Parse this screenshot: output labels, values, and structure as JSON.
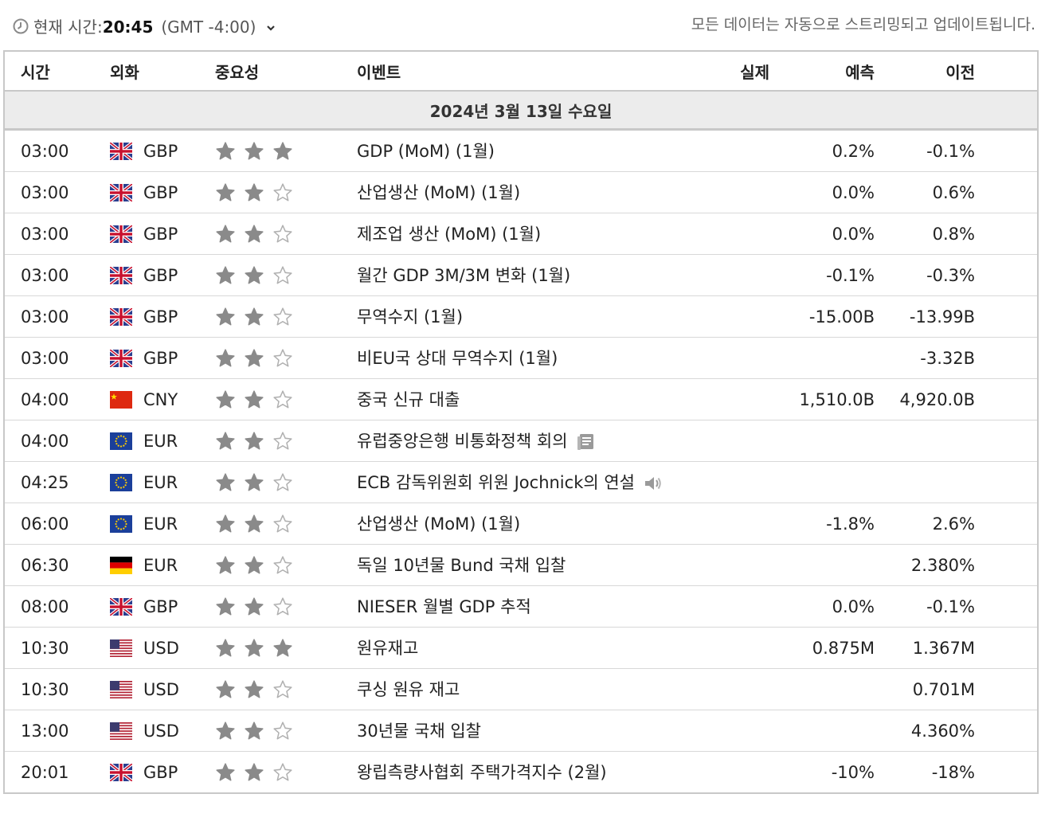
{
  "header": {
    "current_time_label": "현재 시간:",
    "current_time": "20:45",
    "timezone": "(GMT -4:00)",
    "stream_notice": "모든 데이터는 자동으로 스트리밍되고 업데이트됩니다."
  },
  "columns": {
    "time": "시간",
    "currency": "외화",
    "importance": "중요성",
    "event": "이벤트",
    "actual": "실제",
    "forecast": "예측",
    "previous": "이전"
  },
  "date_header": "2024년 3월 13일 수요일",
  "rows": [
    {
      "time": "03:00",
      "flag": "uk",
      "currency": "GBP",
      "stars": 3,
      "event": "GDP (MoM) (1월)",
      "actual": "",
      "forecast": "0.2%",
      "previous": "-0.1%",
      "icon": ""
    },
    {
      "time": "03:00",
      "flag": "uk",
      "currency": "GBP",
      "stars": 2,
      "event": "산업생산 (MoM) (1월)",
      "actual": "",
      "forecast": "0.0%",
      "previous": "0.6%",
      "icon": ""
    },
    {
      "time": "03:00",
      "flag": "uk",
      "currency": "GBP",
      "stars": 2,
      "event": "제조업 생산 (MoM) (1월)",
      "actual": "",
      "forecast": "0.0%",
      "previous": "0.8%",
      "icon": ""
    },
    {
      "time": "03:00",
      "flag": "uk",
      "currency": "GBP",
      "stars": 2,
      "event": "월간 GDP 3M/3M 변화 (1월)",
      "actual": "",
      "forecast": "-0.1%",
      "previous": "-0.3%",
      "icon": ""
    },
    {
      "time": "03:00",
      "flag": "uk",
      "currency": "GBP",
      "stars": 2,
      "event": "무역수지 (1월)",
      "actual": "",
      "forecast": "-15.00B",
      "previous": "-13.99B",
      "icon": ""
    },
    {
      "time": "03:00",
      "flag": "uk",
      "currency": "GBP",
      "stars": 2,
      "event": "비EU국 상대 무역수지 (1월)",
      "actual": "",
      "forecast": "",
      "previous": "-3.32B",
      "icon": ""
    },
    {
      "time": "04:00",
      "flag": "cn",
      "currency": "CNY",
      "stars": 2,
      "event": "중국 신규 대출",
      "actual": "",
      "forecast": "1,510.0B",
      "previous": "4,920.0B",
      "icon": ""
    },
    {
      "time": "04:00",
      "flag": "eu",
      "currency": "EUR",
      "stars": 2,
      "event": "유럽중앙은행 비통화정책 회의",
      "actual": "",
      "forecast": "",
      "previous": "",
      "icon": "document-icon"
    },
    {
      "time": "04:25",
      "flag": "eu",
      "currency": "EUR",
      "stars": 2,
      "event": "ECB 감독위원회 위원 Jochnick의 연설",
      "actual": "",
      "forecast": "",
      "previous": "",
      "icon": "speaker-icon"
    },
    {
      "time": "06:00",
      "flag": "eu",
      "currency": "EUR",
      "stars": 2,
      "event": "산업생산 (MoM) (1월)",
      "actual": "",
      "forecast": "-1.8%",
      "previous": "2.6%",
      "icon": ""
    },
    {
      "time": "06:30",
      "flag": "de",
      "currency": "EUR",
      "stars": 2,
      "event": "독일 10년물 Bund 국채 입찰",
      "actual": "",
      "forecast": "",
      "previous": "2.380%",
      "icon": ""
    },
    {
      "time": "08:00",
      "flag": "uk",
      "currency": "GBP",
      "stars": 2,
      "event": "NIESER 월별 GDP 추적",
      "actual": "",
      "forecast": "0.0%",
      "previous": "-0.1%",
      "icon": ""
    },
    {
      "time": "10:30",
      "flag": "us",
      "currency": "USD",
      "stars": 3,
      "event": "원유재고",
      "actual": "",
      "forecast": "0.875M",
      "previous": "1.367M",
      "icon": ""
    },
    {
      "time": "10:30",
      "flag": "us",
      "currency": "USD",
      "stars": 2,
      "event": "쿠싱 원유 재고",
      "actual": "",
      "forecast": "",
      "previous": "0.701M",
      "icon": ""
    },
    {
      "time": "13:00",
      "flag": "us",
      "currency": "USD",
      "stars": 2,
      "event": "30년물 국채 입찰",
      "actual": "",
      "forecast": "",
      "previous": "4.360%",
      "icon": ""
    },
    {
      "time": "20:01",
      "flag": "uk",
      "currency": "GBP",
      "stars": 2,
      "event": "왕립측량사협회 주택가격지수 (2월)",
      "actual": "",
      "forecast": "-10%",
      "previous": "-18%",
      "icon": ""
    }
  ],
  "colors": {
    "star_filled": "#8a8a8a",
    "star_empty": "#b0b0b0",
    "date_row_bg": "#ececec",
    "border": "#c8c8c8"
  }
}
